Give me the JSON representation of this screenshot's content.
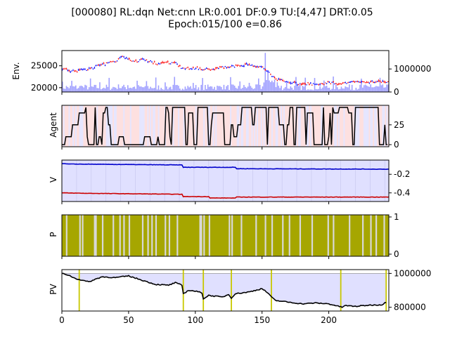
{
  "title_line1": "[000080] RL:dqn Net:cnn LR:0.001 DF:0.9 TU:[4,47] DRT:0.05",
  "title_line2": "Epoch:015/100 e=0.86",
  "colors": {
    "up": "#ff0000",
    "down": "#0000ff",
    "volume": "#a0a0ff",
    "agent_line": "#000000",
    "agent_bg_a": "#fde0e0",
    "agent_bg_b": "#e6e6ff",
    "v_high": "#0000cc",
    "v_low": "#cc0000",
    "v_fill": "#e0e0ff",
    "p_fill": "#a6a600",
    "p_gap": "#d8d8d8",
    "pv_line": "#000000",
    "pv_fill": "#e0e0ff",
    "pv_marker": "#c8c800"
  },
  "chart_data": [
    {
      "panel": "Env.",
      "type": "candlestick+volume",
      "ylabel": "Env.",
      "yticks_left": [
        20000,
        25000
      ],
      "yticks_right": [
        0,
        1000000
      ],
      "price_points": [
        [
          0,
          24200
        ],
        [
          10,
          23800
        ],
        [
          20,
          24300
        ],
        [
          30,
          25300
        ],
        [
          40,
          26200
        ],
        [
          45,
          27000
        ],
        [
          50,
          26400
        ],
        [
          55,
          26000
        ],
        [
          60,
          26400
        ],
        [
          70,
          25600
        ],
        [
          80,
          25700
        ],
        [
          85,
          25900
        ],
        [
          90,
          24300
        ],
        [
          100,
          24500
        ],
        [
          110,
          24100
        ],
        [
          120,
          24700
        ],
        [
          130,
          24900
        ],
        [
          140,
          25300
        ],
        [
          150,
          24600
        ],
        [
          160,
          22000
        ],
        [
          170,
          21300
        ],
        [
          180,
          20800
        ],
        [
          190,
          20900
        ],
        [
          200,
          21100
        ],
        [
          210,
          21000
        ],
        [
          220,
          21400
        ],
        [
          230,
          21200
        ],
        [
          240,
          21600
        ],
        [
          245,
          21200
        ]
      ],
      "volume_spike": {
        "x": 152,
        "value": 1700000
      }
    },
    {
      "panel": "Agent",
      "type": "line",
      "ylabel": "Agent",
      "yticks": [
        0,
        25
      ],
      "ylim": [
        0,
        47
      ]
    },
    {
      "panel": "V",
      "type": "line",
      "ylabel": "V",
      "yticks": [
        -0.2,
        -0.4
      ],
      "series": [
        {
          "values_x": [
            0,
            5,
            90,
            91,
            130,
            131,
            240,
            245
          ],
          "values": [
            -0.085,
            -0.09,
            -0.1,
            -0.125,
            -0.125,
            -0.14,
            -0.145,
            -0.145
          ]
        },
        {
          "values_x": [
            0,
            20,
            90,
            91,
            110,
            111,
            130,
            131,
            160,
            240,
            245
          ],
          "values": [
            -0.4,
            -0.405,
            -0.415,
            -0.44,
            -0.44,
            -0.455,
            -0.455,
            -0.445,
            -0.445,
            -0.445,
            -0.445
          ]
        }
      ]
    },
    {
      "panel": "P",
      "type": "bar",
      "ylabel": "P",
      "yticks": [
        0,
        1
      ],
      "gap_positions": [
        3,
        13,
        15,
        24,
        25,
        30,
        38,
        43,
        46,
        50,
        60,
        64,
        67,
        70,
        77,
        80,
        86,
        103,
        104,
        106,
        110,
        125,
        127,
        134,
        145,
        152,
        157,
        165,
        170,
        178,
        187,
        199,
        203,
        215,
        225,
        231,
        235,
        241
      ]
    },
    {
      "panel": "PV",
      "type": "line",
      "ylabel": "PV",
      "yticks": [
        800000,
        1000000
      ],
      "x": [
        0,
        5,
        10,
        15,
        20,
        30,
        40,
        50,
        60,
        70,
        80,
        85,
        90,
        91,
        95,
        100,
        105,
        106,
        110,
        120,
        125,
        127,
        130,
        140,
        150,
        155,
        157,
        160,
        170,
        180,
        190,
        200,
        210,
        212,
        220,
        230,
        240,
        243
      ],
      "values": [
        1000000,
        990000,
        970000,
        960000,
        950000,
        980000,
        975000,
        985000,
        960000,
        935000,
        930000,
        945000,
        930000,
        880000,
        900000,
        895000,
        885000,
        850000,
        870000,
        860000,
        875000,
        855000,
        880000,
        890000,
        910000,
        880000,
        860000,
        840000,
        830000,
        820000,
        825000,
        820000,
        800000,
        810000,
        805000,
        812000,
        815000,
        830000
      ],
      "markers": [
        13,
        91,
        106,
        127,
        157,
        209,
        243
      ]
    }
  ],
  "xaxis": {
    "ticks": [
      0,
      50,
      100,
      150,
      200
    ],
    "xlim": [
      0,
      245
    ]
  }
}
